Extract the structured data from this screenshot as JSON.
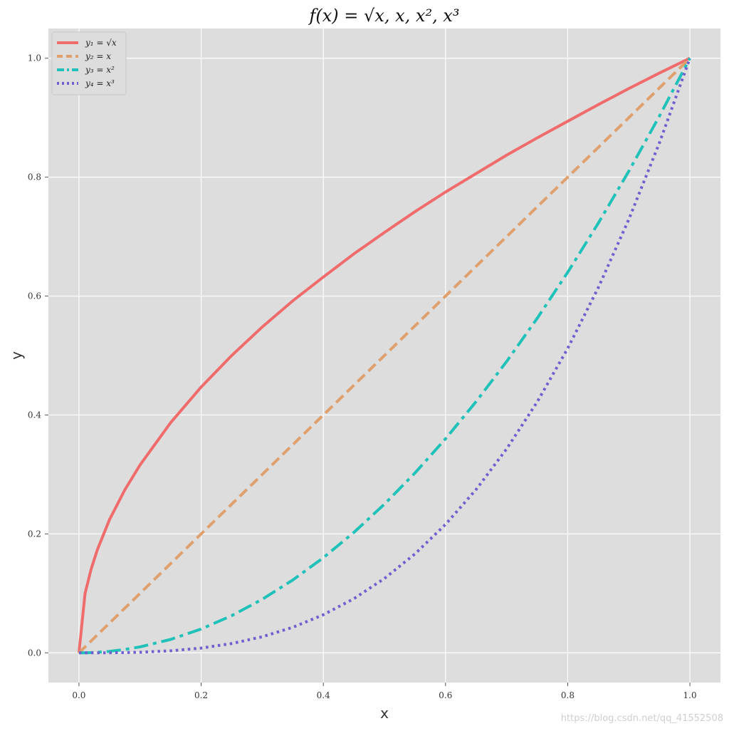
{
  "chart_data": {
    "type": "line",
    "title": "f(x) = √x, x, x², x³",
    "xlabel": "x",
    "ylabel": "y",
    "xlim": [
      -0.05,
      1.05
    ],
    "ylim": [
      -0.05,
      1.05
    ],
    "x_ticks": [
      0.0,
      0.2,
      0.4,
      0.6,
      0.8,
      1.0
    ],
    "x_tick_labels": [
      "0.0",
      "0.2",
      "0.4",
      "0.6",
      "0.8",
      "1.0"
    ],
    "y_ticks": [
      0.0,
      0.2,
      0.4,
      0.6,
      0.8,
      1.0
    ],
    "y_tick_labels": [
      "0.0",
      "0.2",
      "0.4",
      "0.6",
      "0.8",
      "1.0"
    ],
    "grid": true,
    "legend_position": "top-left",
    "x": [
      0.0,
      0.01,
      0.02,
      0.03,
      0.05,
      0.075,
      0.1,
      0.15,
      0.2,
      0.25,
      0.3,
      0.35,
      0.4,
      0.45,
      0.5,
      0.55,
      0.6,
      0.65,
      0.7,
      0.75,
      0.8,
      0.85,
      0.9,
      0.95,
      1.0
    ],
    "series": [
      {
        "name": "y₁ = √x",
        "color": "#f06c6c",
        "style": "solid",
        "values": [
          0.0,
          0.1,
          0.141,
          0.173,
          0.224,
          0.274,
          0.316,
          0.387,
          0.447,
          0.5,
          0.548,
          0.592,
          0.632,
          0.671,
          0.707,
          0.742,
          0.775,
          0.806,
          0.837,
          0.866,
          0.894,
          0.922,
          0.949,
          0.975,
          1.0
        ]
      },
      {
        "name": "y₂ = x",
        "color": "#dfa06e",
        "style": "dashed",
        "values": [
          0.0,
          0.01,
          0.02,
          0.03,
          0.05,
          0.075,
          0.1,
          0.15,
          0.2,
          0.25,
          0.3,
          0.35,
          0.4,
          0.45,
          0.5,
          0.55,
          0.6,
          0.65,
          0.7,
          0.75,
          0.8,
          0.85,
          0.9,
          0.95,
          1.0
        ]
      },
      {
        "name": "y₃ = x²",
        "color": "#1fc1b9",
        "style": "dashdot",
        "values": [
          0.0,
          0.0001,
          0.0004,
          0.0009,
          0.0025,
          0.0056,
          0.01,
          0.0225,
          0.04,
          0.0625,
          0.09,
          0.1225,
          0.16,
          0.2025,
          0.25,
          0.3025,
          0.36,
          0.4225,
          0.49,
          0.5625,
          0.64,
          0.7225,
          0.81,
          0.9025,
          1.0
        ]
      },
      {
        "name": "y₄ = x³",
        "color": "#6f5fcf",
        "style": "dotted",
        "values": [
          0.0,
          0.0,
          0.0,
          0.0,
          0.0001,
          0.0004,
          0.001,
          0.0034,
          0.008,
          0.0156,
          0.027,
          0.0429,
          0.064,
          0.0911,
          0.125,
          0.1664,
          0.216,
          0.2746,
          0.343,
          0.4219,
          0.512,
          0.6141,
          0.729,
          0.8574,
          1.0
        ]
      }
    ]
  },
  "watermark": "https://blog.csdn.net/qq_41552508"
}
